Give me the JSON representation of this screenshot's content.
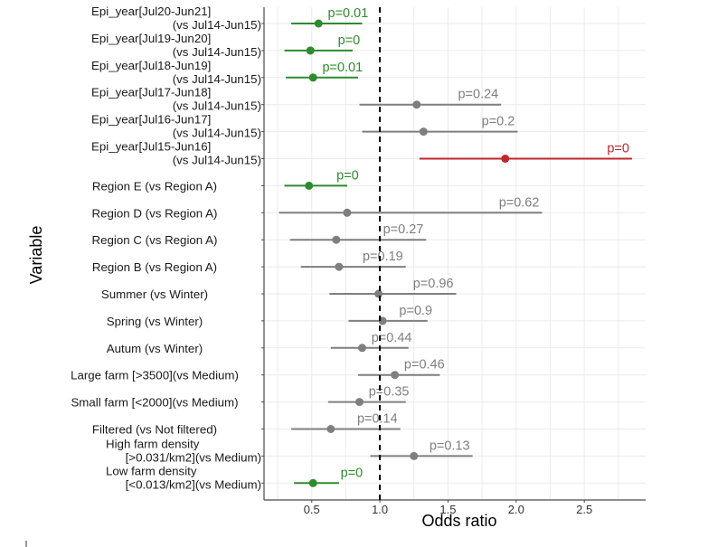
{
  "chart_data": {
    "type": "forest",
    "title": "",
    "xlabel": "Odds ratio",
    "ylabel": "Variable",
    "xlim": [
      0.15,
      2.95
    ],
    "xticks": [
      0.5,
      1.0,
      1.5,
      2.0,
      2.5
    ],
    "xtick_labels": [
      "0.5",
      "1.0",
      "1.5",
      "2.0",
      "2.5"
    ],
    "reference_line": 1.0,
    "grid": true,
    "colors": {
      "significant_lower": "#2e8b2e",
      "significant_higher": "#c0262d",
      "not_significant": "#7f7f7f",
      "reference_line": "#000000"
    },
    "rows": [
      {
        "label": [
          "Epi_year[Jul20-Jun21]",
          "(vs Jul14-Jun15)"
        ],
        "or": 0.55,
        "lo": 0.35,
        "hi": 0.87,
        "p_label": "p=0.01",
        "group": "significant_lower"
      },
      {
        "label": [
          "Epi_year[Jul19-Jun20]",
          "(vs Jul14-Jun15)"
        ],
        "or": 0.49,
        "lo": 0.3,
        "hi": 0.8,
        "p_label": "p=0",
        "group": "significant_lower"
      },
      {
        "label": [
          "Epi_year[Jul18-Jun19]",
          "(vs Jul14-Jun15)"
        ],
        "or": 0.51,
        "lo": 0.31,
        "hi": 0.84,
        "p_label": "p=0.01",
        "group": "significant_lower"
      },
      {
        "label": [
          "Epi_year[Jul17-Jun18]",
          "(vs Jul14-Jun15)"
        ],
        "or": 1.27,
        "lo": 0.85,
        "hi": 1.89,
        "p_label": "p=0.24",
        "group": "not_significant"
      },
      {
        "label": [
          "Epi_year[Jul16-Jun17]",
          "(vs Jul14-Jun15)"
        ],
        "or": 1.32,
        "lo": 0.87,
        "hi": 2.01,
        "p_label": "p=0.2",
        "group": "not_significant"
      },
      {
        "label": [
          "Epi_year[Jul15-Jun16]",
          "(vs Jul14-Jun15)"
        ],
        "or": 1.92,
        "lo": 1.29,
        "hi": 2.85,
        "p_label": "p=0",
        "group": "significant_higher"
      },
      {
        "label": [
          "Region E (vs Region A)"
        ],
        "or": 0.48,
        "lo": 0.3,
        "hi": 0.76,
        "p_label": "p=0",
        "group": "significant_lower"
      },
      {
        "label": [
          "Region D (vs Region A)"
        ],
        "or": 0.76,
        "lo": 0.26,
        "hi": 2.19,
        "p_label": "p=0.62",
        "group": "not_significant"
      },
      {
        "label": [
          "Region C (vs Region A)"
        ],
        "or": 0.68,
        "lo": 0.34,
        "hi": 1.34,
        "p_label": "p=0.27",
        "group": "not_significant"
      },
      {
        "label": [
          "Region B (vs Region A)"
        ],
        "or": 0.7,
        "lo": 0.42,
        "hi": 1.19,
        "p_label": "p=0.19",
        "group": "not_significant"
      },
      {
        "label": [
          "Summer (vs Winter)"
        ],
        "or": 0.99,
        "lo": 0.63,
        "hi": 1.56,
        "p_label": "p=0.96",
        "group": "not_significant"
      },
      {
        "label": [
          "Spring (vs Winter)"
        ],
        "or": 1.02,
        "lo": 0.77,
        "hi": 1.35,
        "p_label": "p=0.9",
        "group": "not_significant"
      },
      {
        "label": [
          "Autum (vs Winter)"
        ],
        "or": 0.87,
        "lo": 0.64,
        "hi": 1.21,
        "p_label": "p=0.44",
        "group": "not_significant"
      },
      {
        "label": [
          "Large farm [>3500](vs Medium)"
        ],
        "or": 1.11,
        "lo": 0.84,
        "hi": 1.44,
        "p_label": "p=0.46",
        "group": "not_significant"
      },
      {
        "label": [
          "Small farm [<2000](vs Medium)"
        ],
        "or": 0.85,
        "lo": 0.62,
        "hi": 1.19,
        "p_label": "p=0.35",
        "group": "not_significant"
      },
      {
        "label": [
          "Filtered (vs Not filtered)"
        ],
        "or": 0.64,
        "lo": 0.35,
        "hi": 1.15,
        "p_label": "p=0.14",
        "group": "not_significant"
      },
      {
        "label": [
          "High farm density",
          "[>0.031/km2](vs Medium)"
        ],
        "or": 1.25,
        "lo": 0.93,
        "hi": 1.68,
        "p_label": "p=0.13",
        "group": "not_significant"
      },
      {
        "label": [
          "Low farm density",
          "[<0.013/km2](vs Medium)"
        ],
        "or": 0.51,
        "lo": 0.37,
        "hi": 0.7,
        "p_label": "p=0",
        "group": "significant_lower"
      }
    ]
  }
}
